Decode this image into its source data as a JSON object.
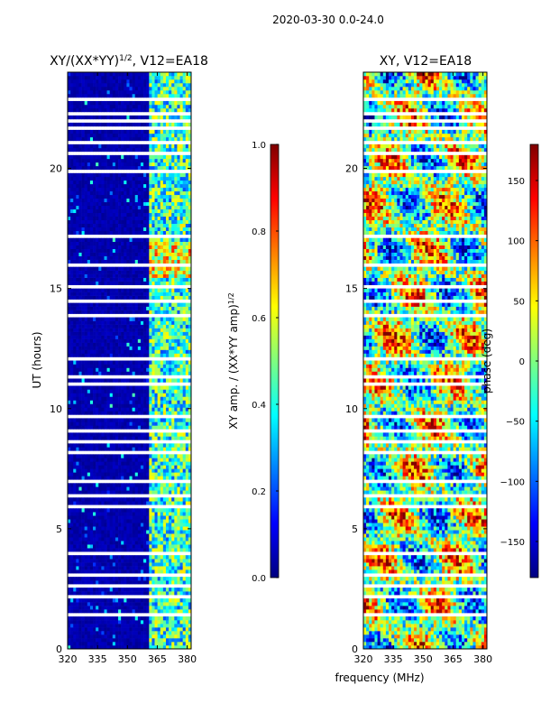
{
  "figure": {
    "suptitle": "2020-03-30 0.0-24.0",
    "xlabel": "frequency (MHz)",
    "colormap": [
      "#00007f",
      "#0000ff",
      "#007fff",
      "#00ffff",
      "#7fff7f",
      "#ffff00",
      "#ff7f00",
      "#ff0000",
      "#7f0000"
    ]
  },
  "chart_data": [
    {
      "type": "heatmap",
      "title_base": "XY/(XX*YY)",
      "title_exp": "1/2",
      "title_suffix": ", V12=EA18",
      "xlabel": "",
      "ylabel": "UT (hours)",
      "xlim": [
        320,
        382
      ],
      "ylim": [
        0,
        24
      ],
      "xticks": [
        320,
        335,
        350,
        365,
        380
      ],
      "yticks": [
        0,
        5,
        10,
        15,
        20
      ],
      "colorbar": {
        "label_base": "XY amp. / (XX*YY amp)",
        "label_exp": "1/2",
        "range": [
          0.0,
          1.0
        ],
        "ticks": [
          "0.0",
          "0.2",
          "0.4",
          "0.6",
          "0.8",
          "1.0"
        ],
        "tick_values": [
          0.0,
          0.2,
          0.4,
          0.6,
          0.8,
          1.0
        ]
      },
      "description": "Normalized cross-correlation amplitude vs frequency and UT; low (~0) below 360 MHz, elevated (0.2-0.8) in 360-382 MHz band, with flagged white gaps"
    },
    {
      "type": "heatmap",
      "title": "XY, V12=EA18",
      "xlabel": "",
      "ylabel": "",
      "xlim": [
        320,
        382
      ],
      "ylim": [
        0,
        24
      ],
      "xticks": [
        320,
        335,
        350,
        365,
        380
      ],
      "yticks": [
        0,
        5,
        10,
        15,
        20
      ],
      "colorbar": {
        "label": "phase (deg)",
        "range": [
          -180,
          180
        ],
        "ticks": [
          "−150",
          "−100",
          "−50",
          "0",
          "50",
          "100",
          "150"
        ],
        "tick_values": [
          -150,
          -100,
          -50,
          0,
          50,
          100,
          150
        ]
      },
      "description": "XY phase vs frequency and UT, values spanning -180 to 180 degrees with flagged white gaps"
    }
  ]
}
